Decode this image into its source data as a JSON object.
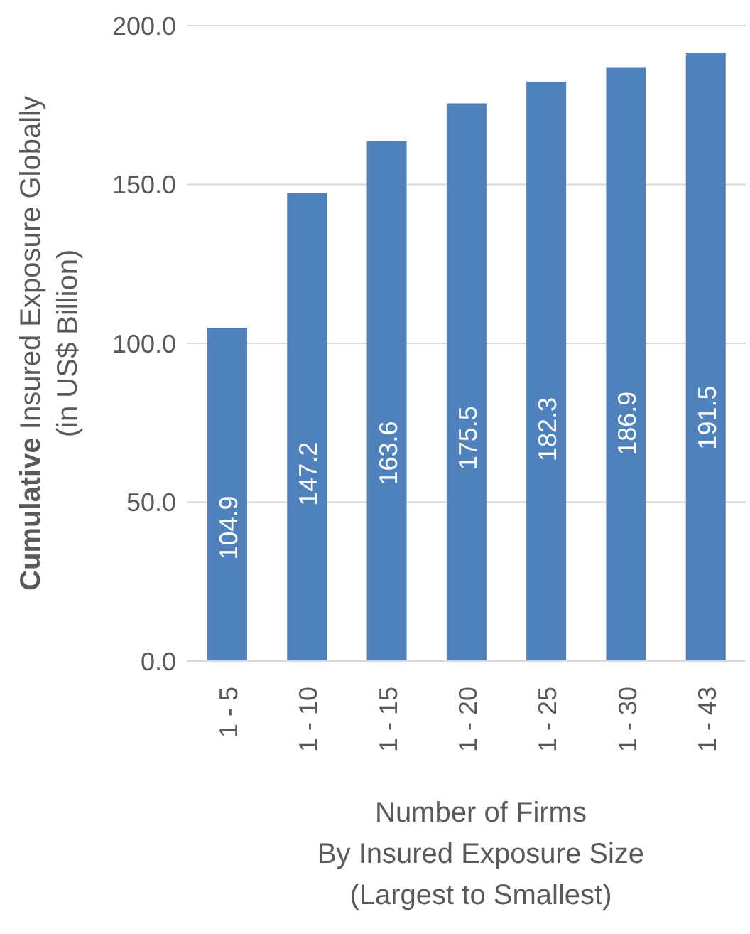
{
  "chart_data": {
    "type": "bar",
    "ylabel": "Cumulative Insured Exposure Globally\n(in US$ Billion)",
    "xlabel": "Number of Firms\nBy Insured Exposure Size\n(Largest to Smallest)",
    "categories": [
      "1 - 5",
      "1 - 10",
      "1 - 15",
      "1 - 20",
      "1 - 25",
      "1 - 30",
      "1 - 43"
    ],
    "values": [
      104.9,
      147.2,
      163.6,
      175.5,
      182.3,
      186.9,
      191.5
    ],
    "color": "#4f81bd",
    "ylim": [
      0,
      200
    ],
    "yticks": [
      {
        "value": 0,
        "label": "0.0"
      },
      {
        "value": 50,
        "label": "50.0"
      },
      {
        "value": 100,
        "label": "100.0"
      },
      {
        "value": 150,
        "label": "150.0"
      },
      {
        "value": 200,
        "label": "200.0"
      }
    ],
    "grid": "y",
    "data_labels": true
  }
}
